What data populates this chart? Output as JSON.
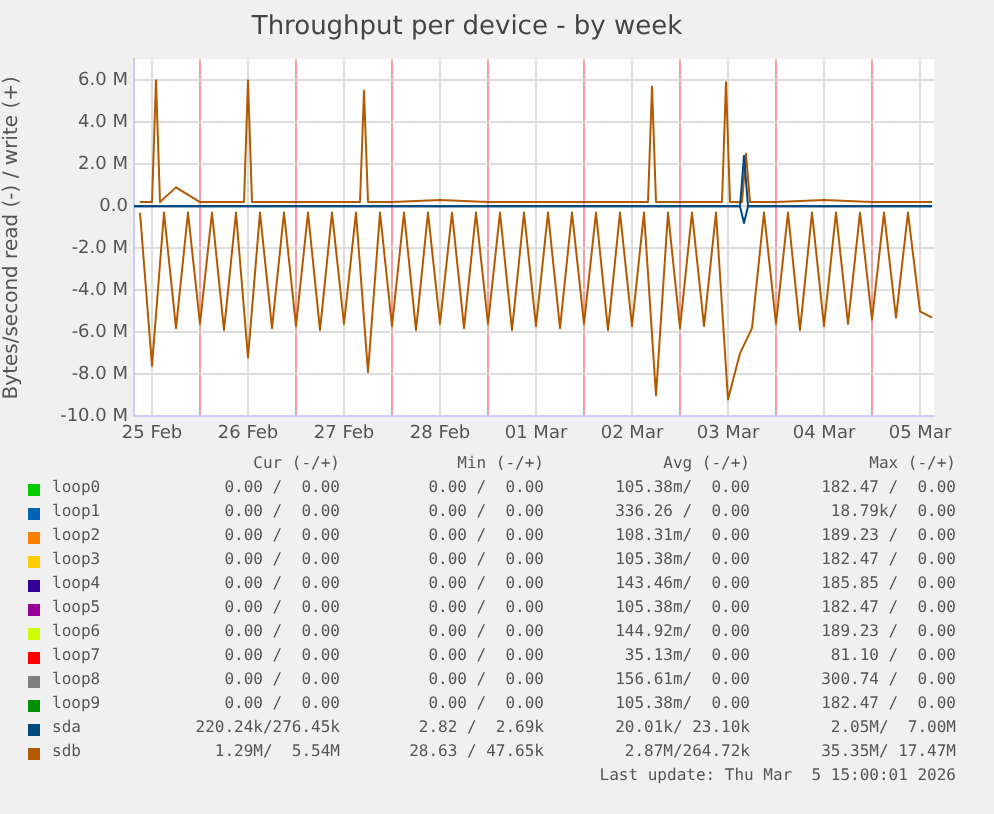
{
  "chart_data": {
    "type": "line",
    "title": "Throughput per device - by week",
    "ylabel": "Bytes/second read (-) / write (+)",
    "xlim": [
      "2026-02-25T07:30",
      "2026-03-05T15:30"
    ],
    "xticks": [
      {
        "value": "2026-02-25T12:00",
        "label": "25 Feb"
      },
      {
        "value": "2026-02-26T00:00",
        "label": null
      },
      {
        "value": "2026-02-26T12:00",
        "label": "26 Feb"
      },
      {
        "value": "2026-02-27T00:00",
        "label": null
      },
      {
        "value": "2026-02-27T12:00",
        "label": "27 Feb"
      },
      {
        "value": "2026-02-28T00:00",
        "label": null
      },
      {
        "value": "2026-02-28T12:00",
        "label": "28 Feb"
      },
      {
        "value": "2026-03-01T00:00",
        "label": null
      },
      {
        "value": "2026-03-01T12:00",
        "label": "01 Mar"
      },
      {
        "value": "2026-03-02T00:00",
        "label": null
      },
      {
        "value": "2026-03-02T12:00",
        "label": "02 Mar"
      },
      {
        "value": "2026-03-03T00:00",
        "label": null
      },
      {
        "value": "2026-03-03T12:00",
        "label": "03 Mar"
      },
      {
        "value": "2026-03-04T00:00",
        "label": null
      },
      {
        "value": "2026-03-04T12:00",
        "label": "04 Mar"
      },
      {
        "value": "2026-03-05T00:00",
        "label": null
      },
      {
        "value": "2026-03-05T12:00",
        "label": "05 Mar"
      }
    ],
    "ylim": [
      -10000000,
      7000000
    ],
    "yticks": [
      {
        "value": -10000000,
        "label": "-10.0 M"
      },
      {
        "value": -8000000,
        "label": "-8.0 M"
      },
      {
        "value": -6000000,
        "label": "-6.0 M"
      },
      {
        "value": -4000000,
        "label": "-4.0 M"
      },
      {
        "value": -2000000,
        "label": "-2.0 M"
      },
      {
        "value": 0,
        "label": "0.0"
      },
      {
        "value": 2000000,
        "label": "2.0 M"
      },
      {
        "value": 4000000,
        "label": "4.0 M"
      },
      {
        "value": 6000000,
        "label": "6.0 M"
      }
    ],
    "grid": true,
    "legend": "bottom",
    "marker": "none",
    "line_style": "solid",
    "series": [
      {
        "name": "loop0",
        "color": "#00cc00"
      },
      {
        "name": "loop1",
        "color": "#0066b3"
      },
      {
        "name": "loop2",
        "color": "#ff8000"
      },
      {
        "name": "loop3",
        "color": "#ffcc00"
      },
      {
        "name": "loop4",
        "color": "#330099"
      },
      {
        "name": "loop5",
        "color": "#990099"
      },
      {
        "name": "loop6",
        "color": "#ccff00"
      },
      {
        "name": "loop7",
        "color": "#ff0000"
      },
      {
        "name": "loop8",
        "color": "#808080"
      },
      {
        "name": "loop9",
        "color": "#008f00"
      },
      {
        "name": "sda",
        "color": "#00487d",
        "x": [
          "2026-02-25T07:30",
          "2026-03-03T15:00",
          "2026-03-03T16:00",
          "2026-03-03T17:00",
          "2026-03-05T15:00"
        ],
        "values": [
          0,
          0,
          2400000,
          0,
          0
        ]
      },
      {
        "color": "#00487d",
        "x": [
          "2026-02-25T07:30",
          "2026-03-03T15:00",
          "2026-03-03T16:00",
          "2026-03-03T17:00",
          "2026-03-05T15:00"
        ],
        "values": [
          0,
          0,
          -800000,
          0,
          0
        ]
      },
      {
        "name": "sdb",
        "color": "#b35a00",
        "x": [
          "2026-02-25T09:00",
          "2026-02-25T12:00",
          "2026-02-25T13:00",
          "2026-02-25T14:00",
          "2026-02-25T18:00",
          "2026-02-26T00:00",
          "2026-02-26T11:00",
          "2026-02-26T12:00",
          "2026-02-26T13:00",
          "2026-02-27T00:00",
          "2026-02-27T16:00",
          "2026-02-27T17:00",
          "2026-02-27T18:00",
          "2026-02-28T00:00",
          "2026-02-28T12:00",
          "2026-03-01T00:00",
          "2026-03-01T12:00",
          "2026-03-02T00:00",
          "2026-03-02T16:00",
          "2026-03-02T17:00",
          "2026-03-02T18:00",
          "2026-03-03T00:00",
          "2026-03-03T10:30",
          "2026-03-03T11:30",
          "2026-03-03T12:30",
          "2026-03-03T15:30",
          "2026-03-03T16:30",
          "2026-03-03T17:30",
          "2026-03-04T00:00",
          "2026-03-04T12:00",
          "2026-03-05T00:00",
          "2026-03-05T15:00"
        ],
        "values": [
          200000,
          200000,
          6000000,
          200000,
          900000,
          200000,
          200000,
          6000000,
          200000,
          200000,
          200000,
          5500000,
          200000,
          200000,
          300000,
          200000,
          200000,
          200000,
          200000,
          5700000,
          200000,
          200000,
          200000,
          5900000,
          200000,
          200000,
          2500000,
          200000,
          200000,
          300000,
          200000,
          200000
        ]
      },
      {
        "color": "#b35a00",
        "x": [
          "2026-02-25T09:00",
          "2026-02-25T12:00",
          "2026-02-25T15:00",
          "2026-02-25T18:00",
          "2026-02-25T21:00",
          "2026-02-26T00:00",
          "2026-02-26T03:00",
          "2026-02-26T06:00",
          "2026-02-26T09:00",
          "2026-02-26T12:00",
          "2026-02-26T15:00",
          "2026-02-26T18:00",
          "2026-02-26T21:00",
          "2026-02-27T00:00",
          "2026-02-27T03:00",
          "2026-02-27T06:00",
          "2026-02-27T09:00",
          "2026-02-27T12:00",
          "2026-02-27T15:00",
          "2026-02-27T18:00",
          "2026-02-27T21:00",
          "2026-02-28T00:00",
          "2026-02-28T03:00",
          "2026-02-28T06:00",
          "2026-02-28T09:00",
          "2026-02-28T12:00",
          "2026-02-28T15:00",
          "2026-02-28T18:00",
          "2026-02-28T21:00",
          "2026-03-01T00:00",
          "2026-03-01T03:00",
          "2026-03-01T06:00",
          "2026-03-01T09:00",
          "2026-03-01T12:00",
          "2026-03-01T15:00",
          "2026-03-01T18:00",
          "2026-03-01T21:00",
          "2026-03-02T00:00",
          "2026-03-02T03:00",
          "2026-03-02T06:00",
          "2026-03-02T09:00",
          "2026-03-02T12:00",
          "2026-03-02T15:00",
          "2026-03-02T18:00",
          "2026-03-02T21:00",
          "2026-03-03T00:00",
          "2026-03-03T03:00",
          "2026-03-03T06:00",
          "2026-03-03T09:00",
          "2026-03-03T12:00",
          "2026-03-03T15:00",
          "2026-03-03T18:00",
          "2026-03-03T21:00",
          "2026-03-04T00:00",
          "2026-03-04T03:00",
          "2026-03-04T06:00",
          "2026-03-04T09:00",
          "2026-03-04T12:00",
          "2026-03-04T15:00",
          "2026-03-04T18:00",
          "2026-03-04T21:00",
          "2026-03-05T00:00",
          "2026-03-05T03:00",
          "2026-03-05T06:00",
          "2026-03-05T09:00",
          "2026-03-05T12:00",
          "2026-03-05T15:00"
        ],
        "values": [
          -300000,
          -7600000,
          -300000,
          -5800000,
          -300000,
          -5600000,
          -300000,
          -5900000,
          -300000,
          -7200000,
          -300000,
          -5800000,
          -300000,
          -5700000,
          -300000,
          -5900000,
          -300000,
          -5600000,
          -300000,
          -7900000,
          -300000,
          -5700000,
          -300000,
          -5900000,
          -300000,
          -5600000,
          -300000,
          -5800000,
          -300000,
          -5600000,
          -300000,
          -5900000,
          -300000,
          -5700000,
          -300000,
          -5800000,
          -300000,
          -5600000,
          -300000,
          -5900000,
          -300000,
          -5700000,
          -300000,
          -9000000,
          -300000,
          -5800000,
          -300000,
          -5700000,
          -300000,
          -9200000,
          -7000000,
          -5800000,
          -300000,
          -5600000,
          -300000,
          -5900000,
          -300000,
          -5700000,
          -300000,
          -5600000,
          -300000,
          -5400000,
          -300000,
          -5300000,
          -300000,
          -5000000,
          -5300000
        ]
      }
    ],
    "annotations": [
      "Cur (-/+)",
      "Min (-/+)",
      "Avg (-/+)",
      "Max (-/+)",
      "0.00 /  0.00",
      "0.00 /  0.00",
      "105.38m/  0.00",
      "182.47 /  0.00",
      "0.00 /  0.00",
      "0.00 /  0.00",
      "336.26 /  0.00",
      "18.79k/  0.00",
      "0.00 /  0.00",
      "0.00 /  0.00",
      "108.31m/  0.00",
      "189.23 /  0.00",
      "0.00 /  0.00",
      "0.00 /  0.00",
      "105.38m/  0.00",
      "182.47 /  0.00",
      "0.00 /  0.00",
      "0.00 /  0.00",
      "143.46m/  0.00",
      "185.85 /  0.00",
      "0.00 /  0.00",
      "0.00 /  0.00",
      "105.38m/  0.00",
      "182.47 /  0.00",
      "0.00 /  0.00",
      "0.00 /  0.00",
      "144.92m/  0.00",
      "189.23 /  0.00",
      "0.00 /  0.00",
      "0.00 /  0.00",
      "35.13m/  0.00",
      "81.10 /  0.00",
      "0.00 /  0.00",
      "0.00 /  0.00",
      "156.61m/  0.00",
      "300.74 /  0.00",
      "0.00 /  0.00",
      "0.00 /  0.00",
      "105.38m/  0.00",
      "182.47 /  0.00",
      "220.24k/276.45k",
      "2.82 /  2.69k",
      "20.01k/ 23.10k",
      "2.05M/  7.00M",
      "1.29M/  5.54M",
      "28.63 / 47.65k",
      "2.87M/264.72k",
      "35.35M/ 17.47M",
      "Last update: Thu Mar  5 15:00:01 2026"
    ]
  }
}
